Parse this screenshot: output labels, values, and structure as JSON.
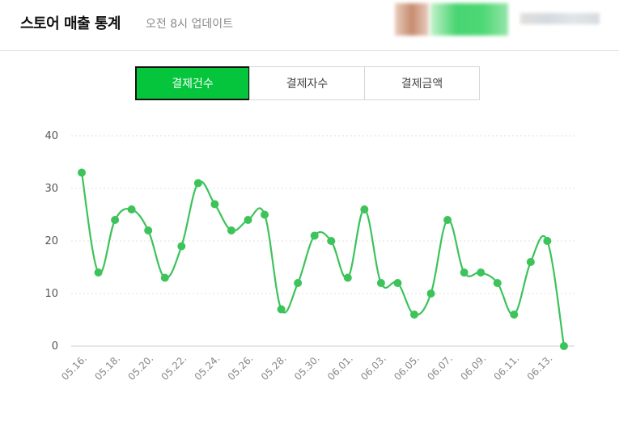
{
  "header": {
    "title": "스토어 매출 통계",
    "subtitle": "오전 8시 업데이트"
  },
  "tabs": [
    {
      "label": "결제건수",
      "active": true
    },
    {
      "label": "결제자수",
      "active": false
    },
    {
      "label": "결제금액",
      "active": false
    }
  ],
  "colors": {
    "accent": "#04c53c",
    "line": "#3cc35a",
    "grid": "#e0e0e0"
  },
  "chart_data": {
    "type": "line",
    "x": [
      "05.16.",
      "05.17.",
      "05.18.",
      "05.19.",
      "05.20.",
      "05.21.",
      "05.22.",
      "05.23.",
      "05.24.",
      "05.25.",
      "05.26.",
      "05.27.",
      "05.28.",
      "05.29.",
      "05.30.",
      "05.31.",
      "06.01.",
      "06.02.",
      "06.03.",
      "06.04.",
      "06.05.",
      "06.06.",
      "06.07.",
      "06.08.",
      "06.09.",
      "06.10.",
      "06.11.",
      "06.12.",
      "06.13.",
      "06.14."
    ],
    "x_tick_labels": [
      "05.16.",
      "05.18.",
      "05.20.",
      "05.22.",
      "05.24.",
      "05.26.",
      "05.28.",
      "05.30.",
      "06.01.",
      "06.03.",
      "06.05.",
      "06.07.",
      "06.09.",
      "06.11.",
      "06.13."
    ],
    "values": [
      33,
      14,
      24,
      26,
      22,
      13,
      19,
      31,
      27,
      22,
      24,
      25,
      7,
      12,
      21,
      20,
      13,
      26,
      12,
      12,
      6,
      10,
      24,
      14,
      14,
      12,
      6,
      16,
      20,
      0
    ],
    "y_ticks": [
      0,
      10,
      20,
      30,
      40
    ],
    "ylim": [
      0,
      40
    ],
    "grid": "horizontal dotted",
    "smooth": true
  }
}
